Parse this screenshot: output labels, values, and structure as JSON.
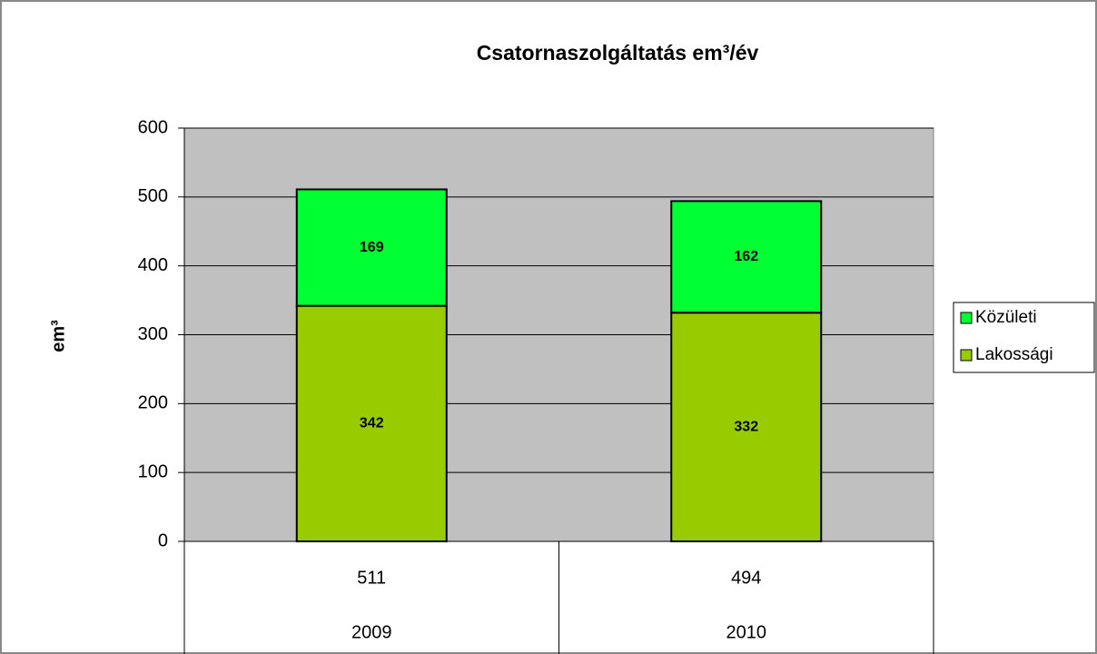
{
  "chart_data": {
    "type": "bar",
    "stacked": true,
    "title": "Csatornaszolgáltatás em³/év",
    "y_label": "em³",
    "categories": [
      "2009",
      "2010"
    ],
    "totals": [
      511,
      494
    ],
    "series": [
      {
        "name": "Lakossági",
        "color": "#99cc00",
        "values": [
          342,
          332
        ]
      },
      {
        "name": "Közületi",
        "color": "#00ff33",
        "values": [
          169,
          162
        ]
      }
    ],
    "ylim": [
      0,
      600
    ],
    "yticks": [
      0,
      100,
      200,
      300,
      400,
      500,
      600
    ],
    "grid": true,
    "legend": "right"
  }
}
